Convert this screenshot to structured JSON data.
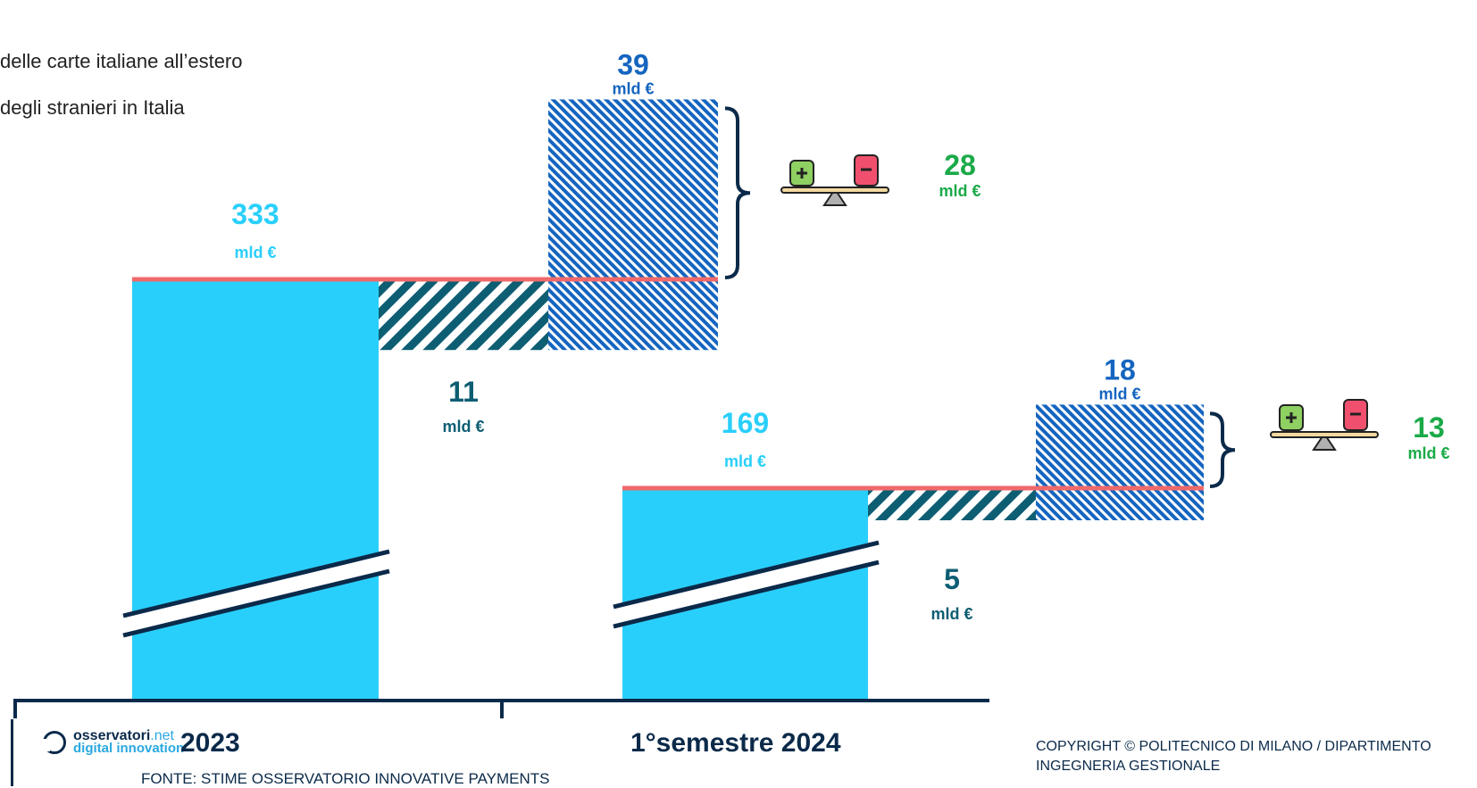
{
  "legend": {
    "item1": "delle carte italiane all’estero",
    "item2": "degli stranieri in Italia"
  },
  "unit_label": "mld €",
  "footer": {
    "logo_line1_a": "osservatori",
    "logo_line1_b": ".net",
    "logo_line2": "digital innovation",
    "source": "FONTE: STIME OSSERVATORIO INNOVATIVE PAYMENTS",
    "copyright_line1": "COPYRIGHT © POLITECNICO DI MILANO / DIPARTIMENTO",
    "copyright_line2": "INGEGNERIA GESTIONALE"
  },
  "colors": {
    "main_bar": "#29cffb",
    "dark_teal": "#0d5e73",
    "blue": "#1565c0",
    "green": "#1aaa48",
    "red_line": "#f0696a",
    "axis": "#0b2a4a"
  },
  "chart_data": {
    "type": "bar",
    "categories": [
      "2023",
      "1°semestre 2024"
    ],
    "series": [
      {
        "values": [
          333,
          169
        ]
      },
      {
        "values": [
          11,
          5
        ]
      },
      {
        "values": [
          39,
          18
        ]
      }
    ],
    "balance": [
      28,
      13
    ],
    "value_labels": {
      "main": [
        "333",
        "169"
      ],
      "outgoing": [
        "11",
        "5"
      ],
      "incoming": [
        "39",
        "18"
      ],
      "balance": [
        "28",
        "13"
      ]
    },
    "axis_break": true
  }
}
